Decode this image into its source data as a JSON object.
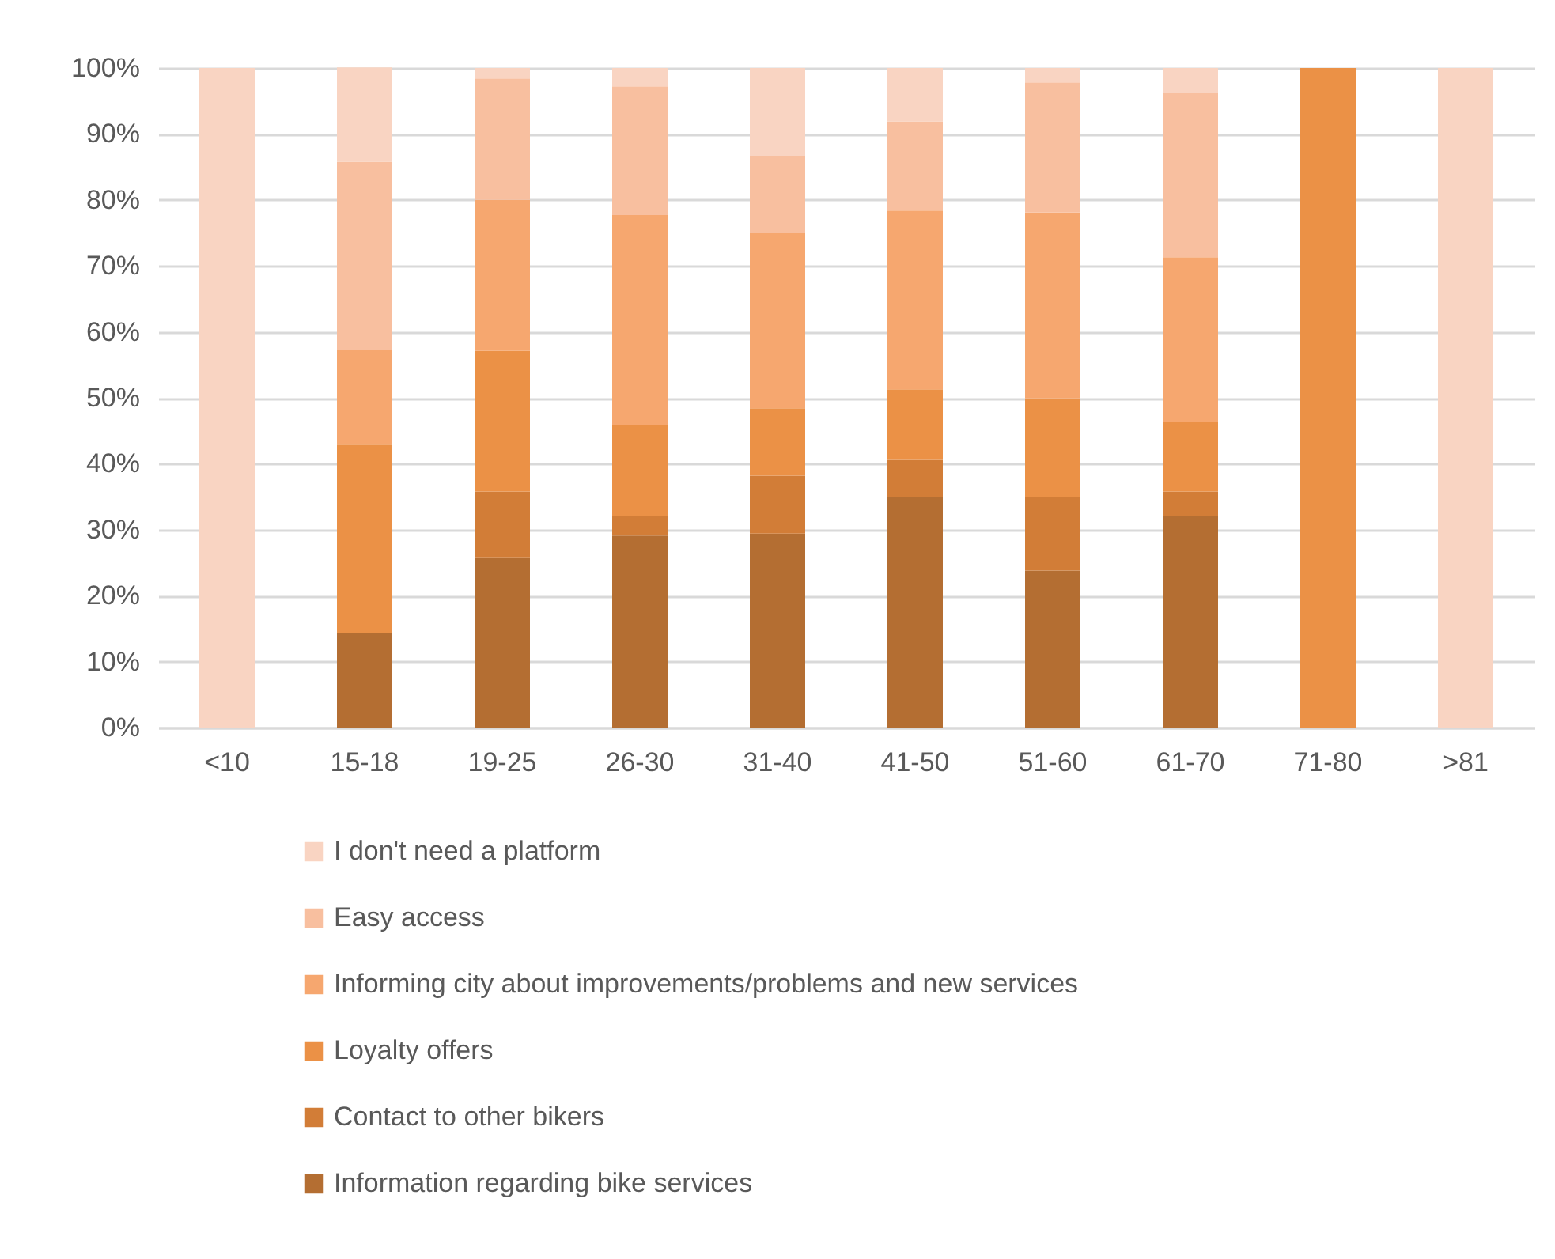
{
  "chart_data": {
    "type": "bar",
    "stacked": true,
    "categories": [
      "<10",
      "15-18",
      "19-25",
      "26-30",
      "31-40",
      "41-50",
      "51-60",
      "61-70",
      "71-80",
      ">81"
    ],
    "series": [
      {
        "name": "Information regarding bike services",
        "color": "#b46e32",
        "values": [
          0,
          14.3,
          25.8,
          29.1,
          29.4,
          35.0,
          23.8,
          32.0,
          0,
          0
        ]
      },
      {
        "name": "Contact to other bikers",
        "color": "#d27d37",
        "values": [
          0,
          0,
          10.0,
          2.9,
          8.8,
          5.6,
          11.1,
          3.8,
          0,
          0
        ]
      },
      {
        "name": "Loyalty offers",
        "color": "#eb9146",
        "values": [
          0,
          28.6,
          21.3,
          13.8,
          10.2,
          10.7,
          15.0,
          10.6,
          100,
          0
        ]
      },
      {
        "name": "Informing city about improvements/problems and new services",
        "color": "#f6a76f",
        "values": [
          0,
          14.3,
          22.9,
          31.9,
          26.6,
          27.1,
          28.2,
          24.9,
          0,
          0
        ]
      },
      {
        "name": "Easy access",
        "color": "#f8bf9f",
        "values": [
          0,
          28.6,
          18.4,
          19.5,
          11.7,
          13.5,
          19.7,
          24.9,
          0,
          0
        ]
      },
      {
        "name": "I don't need a platform",
        "color": "#f9d4c2",
        "values": [
          100,
          14.3,
          1.6,
          2.8,
          13.3,
          8.1,
          2.2,
          3.8,
          0,
          100
        ]
      }
    ],
    "ylim": [
      0,
      100
    ],
    "yticks": [
      {
        "value": 0,
        "label": "0%"
      },
      {
        "value": 10,
        "label": "10%"
      },
      {
        "value": 20,
        "label": "20%"
      },
      {
        "value": 30,
        "label": "30%"
      },
      {
        "value": 40,
        "label": "40%"
      },
      {
        "value": 50,
        "label": "50%"
      },
      {
        "value": 60,
        "label": "60%"
      },
      {
        "value": 70,
        "label": "70%"
      },
      {
        "value": 80,
        "label": "80%"
      },
      {
        "value": 90,
        "label": "90%"
      },
      {
        "value": 100,
        "label": "100%"
      }
    ],
    "grid": "y",
    "legend": "bottom"
  }
}
